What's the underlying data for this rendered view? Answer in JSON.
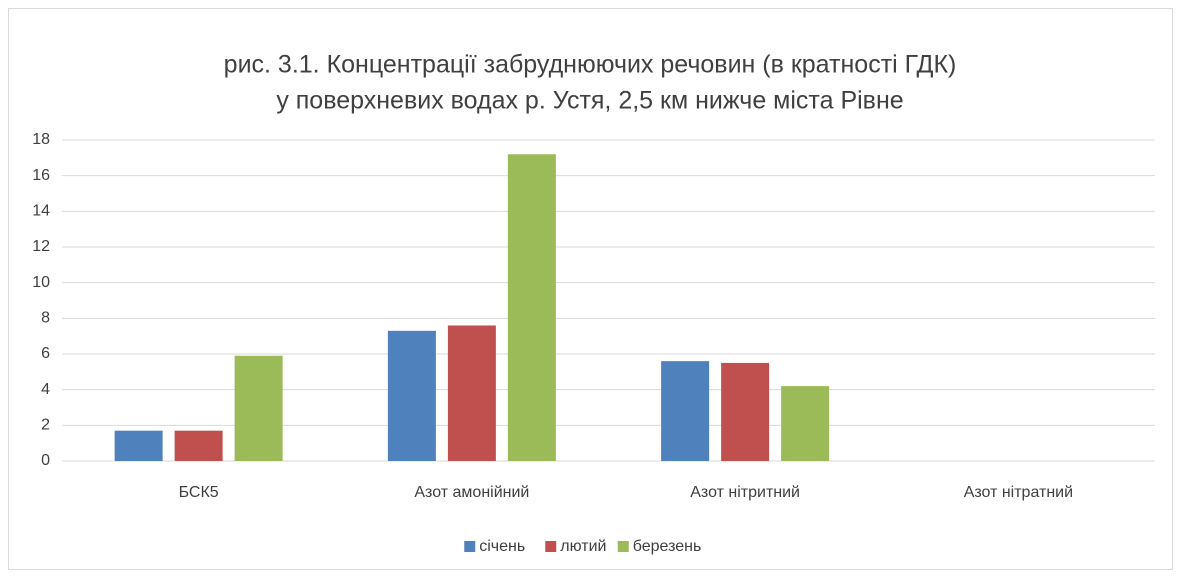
{
  "chart_data": {
    "type": "bar",
    "title": [
      "рис. 3.1. Концентрації забруднюючих речовин (в кратності ГДК)",
      "у поверхневих водах р. Устя, 2,5 км нижче міста Рівне"
    ],
    "categories": [
      "БСК5",
      "Азот амонійний",
      "Азот нітритний",
      "Азот нітратний"
    ],
    "series": [
      {
        "name": "січень",
        "color": "#4f81bd",
        "values": [
          1.7,
          7.3,
          5.6,
          0
        ]
      },
      {
        "name": "лютий",
        "color": "#c0504d",
        "values": [
          1.7,
          7.6,
          5.5,
          0
        ]
      },
      {
        "name": "березень",
        "color": "#9bbb59",
        "values": [
          5.9,
          17.2,
          4.2,
          0
        ]
      }
    ],
    "ylim": [
      0,
      18
    ],
    "yticks": [
      0,
      2,
      4,
      6,
      8,
      10,
      12,
      14,
      16,
      18
    ],
    "grid": true,
    "legend": "bottom"
  }
}
